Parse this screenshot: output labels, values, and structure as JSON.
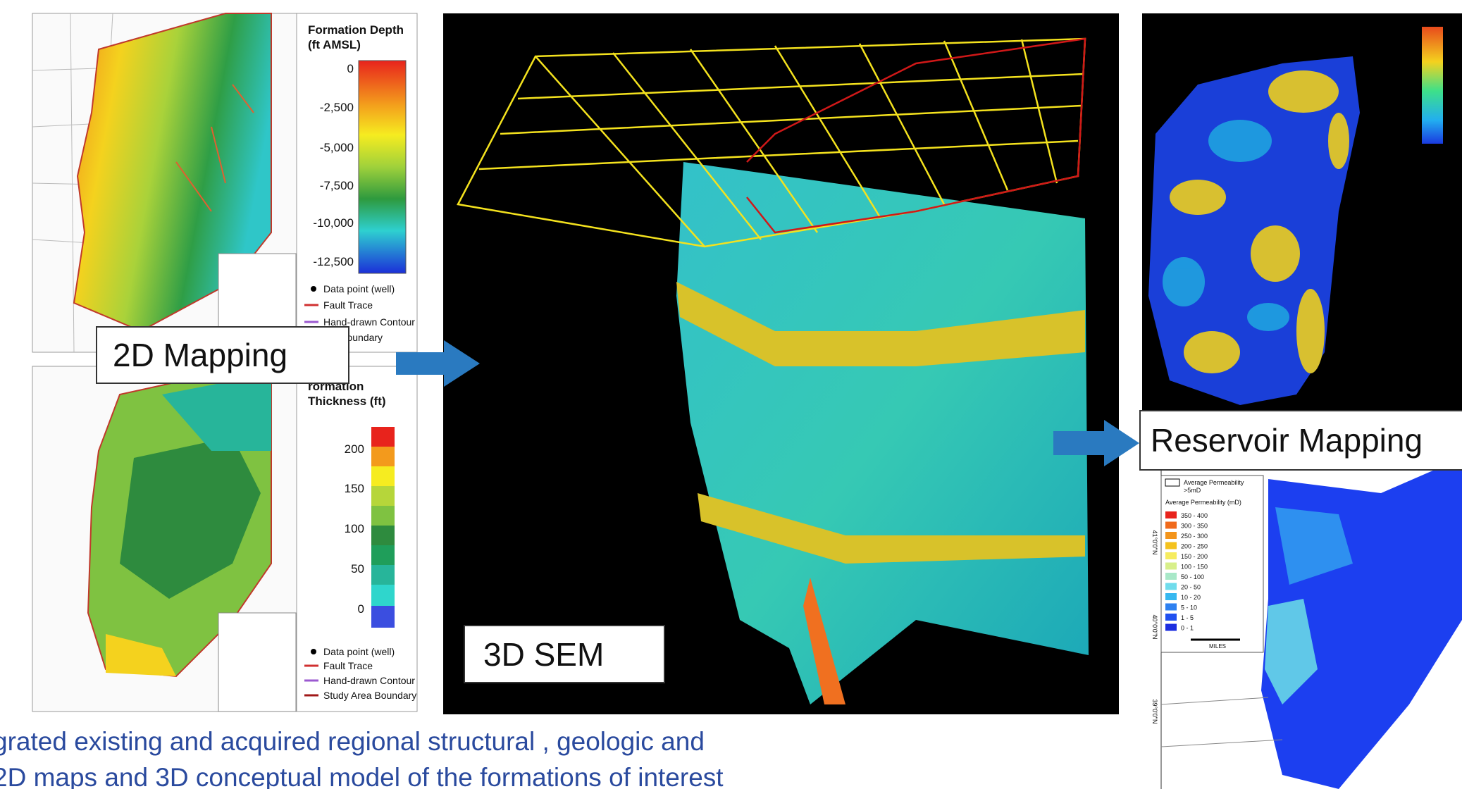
{
  "labels": {
    "mapping_2d": "2D Mapping",
    "sem_3d": "3D SEM",
    "reservoir_mapping": "Reservoir Mapping"
  },
  "caption": [
    "grated existing and acquired regional structural , geologic and",
    "2D maps and 3D conceptual model of the formations of interest"
  ],
  "depth_legend": {
    "title": [
      "Formation Depth",
      "(ft AMSL)"
    ],
    "ticks": [
      "0",
      "-2,500",
      "-5,000",
      "-7,500",
      "-10,000",
      "-12,500"
    ],
    "items": [
      "Data point (well)",
      "Fault Trace",
      "Hand-drawn Contour",
      "rea Boundary"
    ]
  },
  "thickness_legend": {
    "title": [
      "rormation",
      "Thickness (ft)"
    ],
    "ticks": [
      "200",
      "150",
      "100",
      "50",
      "0"
    ],
    "items": [
      "Data point (well)",
      "Fault Trace",
      "Hand-drawn Contour",
      "Study Area Boundary"
    ]
  },
  "permeability_legend": {
    "pattern_item": [
      "Average Permeability",
      ">5mD"
    ],
    "title": "Average Permeability (mD)",
    "classes": [
      "350 - 400",
      "300 - 350",
      "250 - 300",
      "200 - 250",
      "150 - 200",
      "100 - 150",
      "50 - 100",
      "20 - 50",
      "10 - 20",
      "5 - 10",
      "1 - 5",
      "0 - 1"
    ],
    "scale_label": "MILES"
  },
  "latitude_labels": [
    "41°0'0\"N",
    "40°0'0\"N",
    "39°0'0\"N"
  ]
}
